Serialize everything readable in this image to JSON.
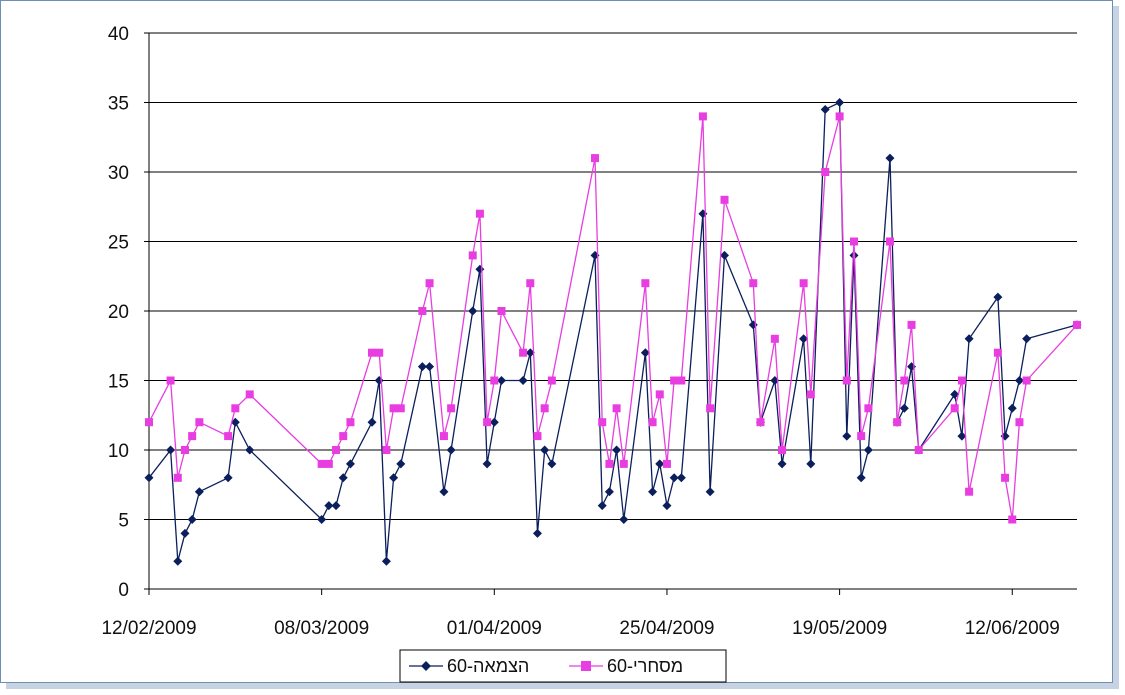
{
  "chart_data": {
    "type": "line",
    "title": "",
    "xlabel": "",
    "ylabel": "",
    "ylim": [
      0,
      40
    ],
    "yticks": [
      0,
      5,
      10,
      15,
      20,
      25,
      30,
      35,
      40
    ],
    "xlim": [
      "2009-02-12",
      "2009-06-21"
    ],
    "xtick_labels": [
      "12/02/2009",
      "08/03/2009",
      "01/04/2009",
      "25/04/2009",
      "19/05/2009",
      "12/06/2009"
    ],
    "xtick_dates": [
      "2009-02-12",
      "2009-03-08",
      "2009-04-01",
      "2009-04-25",
      "2009-05-19",
      "2009-06-12"
    ],
    "grid": "horizontal",
    "legend_position": "bottom",
    "series": [
      {
        "name": "הצמאה-60",
        "color": "#0b1f5c",
        "marker": "diamond",
        "points": [
          [
            "2009-02-12",
            8
          ],
          [
            "2009-02-15",
            10
          ],
          [
            "2009-02-16",
            2
          ],
          [
            "2009-02-17",
            4
          ],
          [
            "2009-02-18",
            5
          ],
          [
            "2009-02-19",
            7
          ],
          [
            "2009-02-23",
            8
          ],
          [
            "2009-02-24",
            12
          ],
          [
            "2009-02-26",
            10
          ],
          [
            "2009-03-08",
            5
          ],
          [
            "2009-03-09",
            6
          ],
          [
            "2009-03-10",
            6
          ],
          [
            "2009-03-11",
            8
          ],
          [
            "2009-03-12",
            9
          ],
          [
            "2009-03-15",
            12
          ],
          [
            "2009-03-16",
            15
          ],
          [
            "2009-03-17",
            2
          ],
          [
            "2009-03-18",
            8
          ],
          [
            "2009-03-19",
            9
          ],
          [
            "2009-03-22",
            16
          ],
          [
            "2009-03-23",
            16
          ],
          [
            "2009-03-25",
            7
          ],
          [
            "2009-03-26",
            10
          ],
          [
            "2009-03-29",
            20
          ],
          [
            "2009-03-30",
            23
          ],
          [
            "2009-03-31",
            9
          ],
          [
            "2009-04-01",
            12
          ],
          [
            "2009-04-02",
            15
          ],
          [
            "2009-04-05",
            15
          ],
          [
            "2009-04-06",
            17
          ],
          [
            "2009-04-07",
            4
          ],
          [
            "2009-04-08",
            10
          ],
          [
            "2009-04-09",
            9
          ],
          [
            "2009-04-15",
            24
          ],
          [
            "2009-04-16",
            6
          ],
          [
            "2009-04-17",
            7
          ],
          [
            "2009-04-18",
            10
          ],
          [
            "2009-04-19",
            5
          ],
          [
            "2009-04-22",
            17
          ],
          [
            "2009-04-23",
            7
          ],
          [
            "2009-04-24",
            9
          ],
          [
            "2009-04-25",
            6
          ],
          [
            "2009-04-26",
            8
          ],
          [
            "2009-04-27",
            8
          ],
          [
            "2009-04-30",
            27
          ],
          [
            "2009-05-01",
            7
          ],
          [
            "2009-05-03",
            24
          ],
          [
            "2009-05-07",
            19
          ],
          [
            "2009-05-08",
            12
          ],
          [
            "2009-05-10",
            15
          ],
          [
            "2009-05-11",
            9
          ],
          [
            "2009-05-14",
            18
          ],
          [
            "2009-05-15",
            9
          ],
          [
            "2009-05-17",
            34.5
          ],
          [
            "2009-05-19",
            35
          ],
          [
            "2009-05-20",
            11
          ],
          [
            "2009-05-21",
            24
          ],
          [
            "2009-05-22",
            8
          ],
          [
            "2009-05-23",
            10
          ],
          [
            "2009-05-26",
            31
          ],
          [
            "2009-05-27",
            12
          ],
          [
            "2009-05-28",
            13
          ],
          [
            "2009-05-29",
            16
          ],
          [
            "2009-05-30",
            10
          ],
          [
            "2009-06-04",
            14
          ],
          [
            "2009-06-05",
            11
          ],
          [
            "2009-06-06",
            18
          ],
          [
            "2009-06-10",
            21
          ],
          [
            "2009-06-11",
            11
          ],
          [
            "2009-06-12",
            13
          ],
          [
            "2009-06-13",
            15
          ],
          [
            "2009-06-14",
            18
          ],
          [
            "2009-06-21",
            19
          ]
        ]
      },
      {
        "name": "מסחרי-60",
        "color": "#e83de0",
        "marker": "square",
        "points": [
          [
            "2009-02-12",
            12
          ],
          [
            "2009-02-15",
            15
          ],
          [
            "2009-02-16",
            8
          ],
          [
            "2009-02-17",
            10
          ],
          [
            "2009-02-18",
            11
          ],
          [
            "2009-02-19",
            12
          ],
          [
            "2009-02-23",
            11
          ],
          [
            "2009-02-24",
            13
          ],
          [
            "2009-02-26",
            14
          ],
          [
            "2009-03-08",
            9
          ],
          [
            "2009-03-09",
            9
          ],
          [
            "2009-03-10",
            10
          ],
          [
            "2009-03-11",
            11
          ],
          [
            "2009-03-12",
            12
          ],
          [
            "2009-03-15",
            17
          ],
          [
            "2009-03-16",
            17
          ],
          [
            "2009-03-17",
            10
          ],
          [
            "2009-03-18",
            13
          ],
          [
            "2009-03-19",
            13
          ],
          [
            "2009-03-22",
            20
          ],
          [
            "2009-03-23",
            22
          ],
          [
            "2009-03-25",
            11
          ],
          [
            "2009-03-26",
            13
          ],
          [
            "2009-03-29",
            24
          ],
          [
            "2009-03-30",
            27
          ],
          [
            "2009-03-31",
            12
          ],
          [
            "2009-04-01",
            15
          ],
          [
            "2009-04-02",
            20
          ],
          [
            "2009-04-05",
            17
          ],
          [
            "2009-04-06",
            22
          ],
          [
            "2009-04-07",
            11
          ],
          [
            "2009-04-08",
            13
          ],
          [
            "2009-04-09",
            15
          ],
          [
            "2009-04-15",
            31
          ],
          [
            "2009-04-16",
            12
          ],
          [
            "2009-04-17",
            9
          ],
          [
            "2009-04-18",
            13
          ],
          [
            "2009-04-19",
            9
          ],
          [
            "2009-04-22",
            22
          ],
          [
            "2009-04-23",
            12
          ],
          [
            "2009-04-24",
            14
          ],
          [
            "2009-04-25",
            9
          ],
          [
            "2009-04-26",
            15
          ],
          [
            "2009-04-27",
            15
          ],
          [
            "2009-04-30",
            34
          ],
          [
            "2009-05-01",
            13
          ],
          [
            "2009-05-03",
            28
          ],
          [
            "2009-05-07",
            22
          ],
          [
            "2009-05-08",
            12
          ],
          [
            "2009-05-10",
            18
          ],
          [
            "2009-05-11",
            10
          ],
          [
            "2009-05-14",
            22
          ],
          [
            "2009-05-15",
            14
          ],
          [
            "2009-05-17",
            30
          ],
          [
            "2009-05-19",
            34
          ],
          [
            "2009-05-20",
            15
          ],
          [
            "2009-05-21",
            25
          ],
          [
            "2009-05-22",
            11
          ],
          [
            "2009-05-23",
            13
          ],
          [
            "2009-05-26",
            25
          ],
          [
            "2009-05-27",
            12
          ],
          [
            "2009-05-28",
            15
          ],
          [
            "2009-05-29",
            19
          ],
          [
            "2009-05-30",
            10
          ],
          [
            "2009-06-04",
            13
          ],
          [
            "2009-06-05",
            15
          ],
          [
            "2009-06-06",
            7
          ],
          [
            "2009-06-10",
            17
          ],
          [
            "2009-06-11",
            8
          ],
          [
            "2009-06-12",
            5
          ],
          [
            "2009-06-13",
            12
          ],
          [
            "2009-06-14",
            15
          ],
          [
            "2009-06-21",
            19
          ]
        ]
      }
    ]
  }
}
